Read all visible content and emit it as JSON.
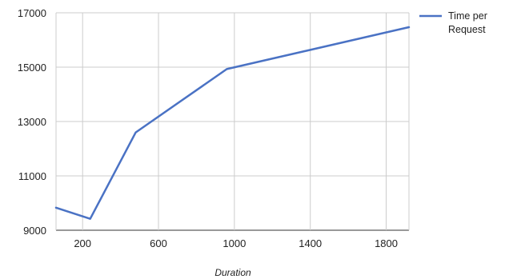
{
  "chart_data": {
    "type": "line",
    "title": "",
    "xlabel": "Duration",
    "ylabel": "",
    "x": [
      60,
      240,
      480,
      960,
      1920
    ],
    "series": [
      {
        "name": "Time per Request",
        "values": [
          9830,
          9420,
          12600,
          14930,
          16470
        ],
        "color": "#4a72c4"
      }
    ],
    "xlim": [
      60,
      1920
    ],
    "ylim": [
      9000,
      17000
    ],
    "x_ticks": [
      200,
      600,
      1000,
      1400,
      1800
    ],
    "y_ticks": [
      9000,
      11000,
      13000,
      15000,
      17000
    ],
    "grid": true,
    "legend_position": "right",
    "legend_lines": [
      "Time per",
      "Request"
    ]
  }
}
